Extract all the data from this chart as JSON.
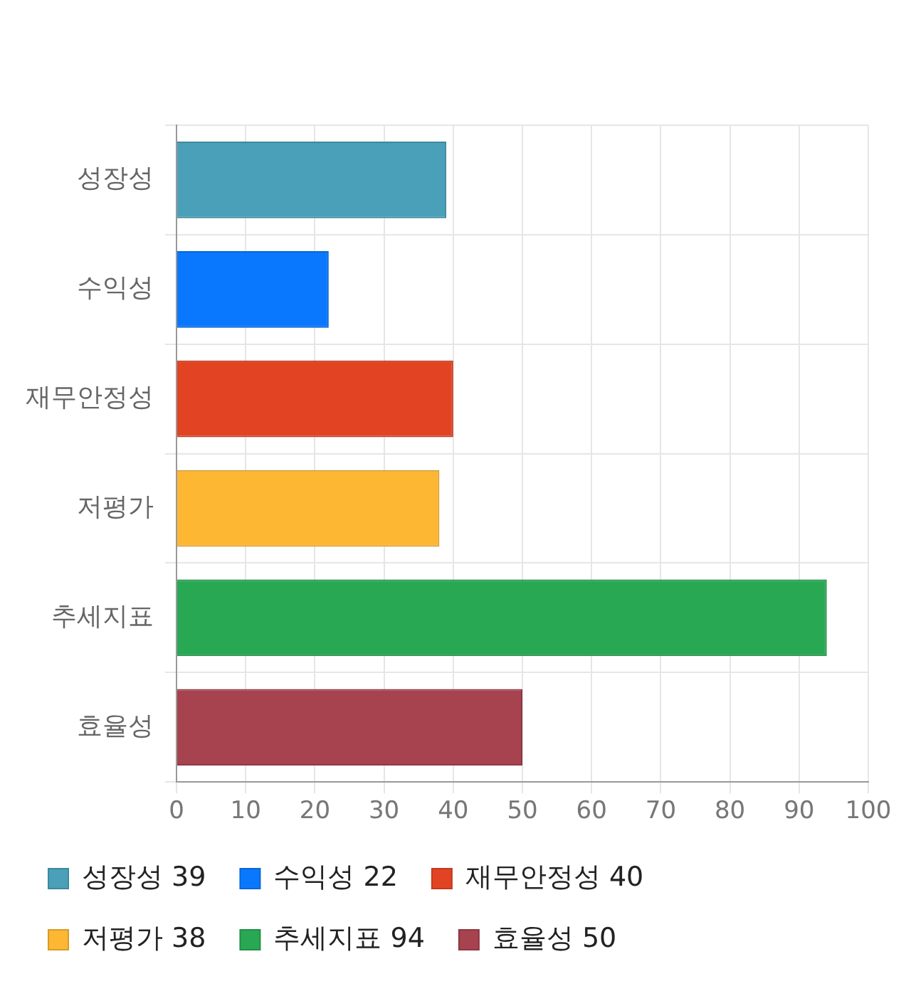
{
  "chart_data": {
    "type": "bar",
    "orientation": "horizontal",
    "stacked": true,
    "categories": [
      "성장성",
      "수익성",
      "재무안정성",
      "저평가",
      "추세지표",
      "효율성"
    ],
    "series": [
      {
        "name": "성장성 39",
        "color": "#4aa0b9",
        "values": [
          39,
          null,
          null,
          null,
          null,
          null
        ]
      },
      {
        "name": "수익성 22",
        "color": "#0a78fe",
        "values": [
          null,
          22,
          null,
          null,
          null,
          null
        ]
      },
      {
        "name": "재무안정성 40",
        "color": "#e24423",
        "values": [
          null,
          null,
          40,
          null,
          null,
          null
        ]
      },
      {
        "name": "저평가 38",
        "color": "#fdb733",
        "values": [
          null,
          null,
          null,
          38,
          null,
          null
        ]
      },
      {
        "name": "추세지표 94",
        "color": "#29a854",
        "values": [
          null,
          null,
          null,
          null,
          94,
          null
        ]
      },
      {
        "name": "효율성 50",
        "color": "#a7424f",
        "values": [
          null,
          null,
          null,
          null,
          null,
          50
        ]
      }
    ],
    "xlim": [
      0,
      100
    ],
    "xticks": [
      0,
      10,
      20,
      30,
      40,
      50,
      60,
      70,
      80,
      90,
      100
    ],
    "grid": true,
    "legend": "bottom"
  }
}
